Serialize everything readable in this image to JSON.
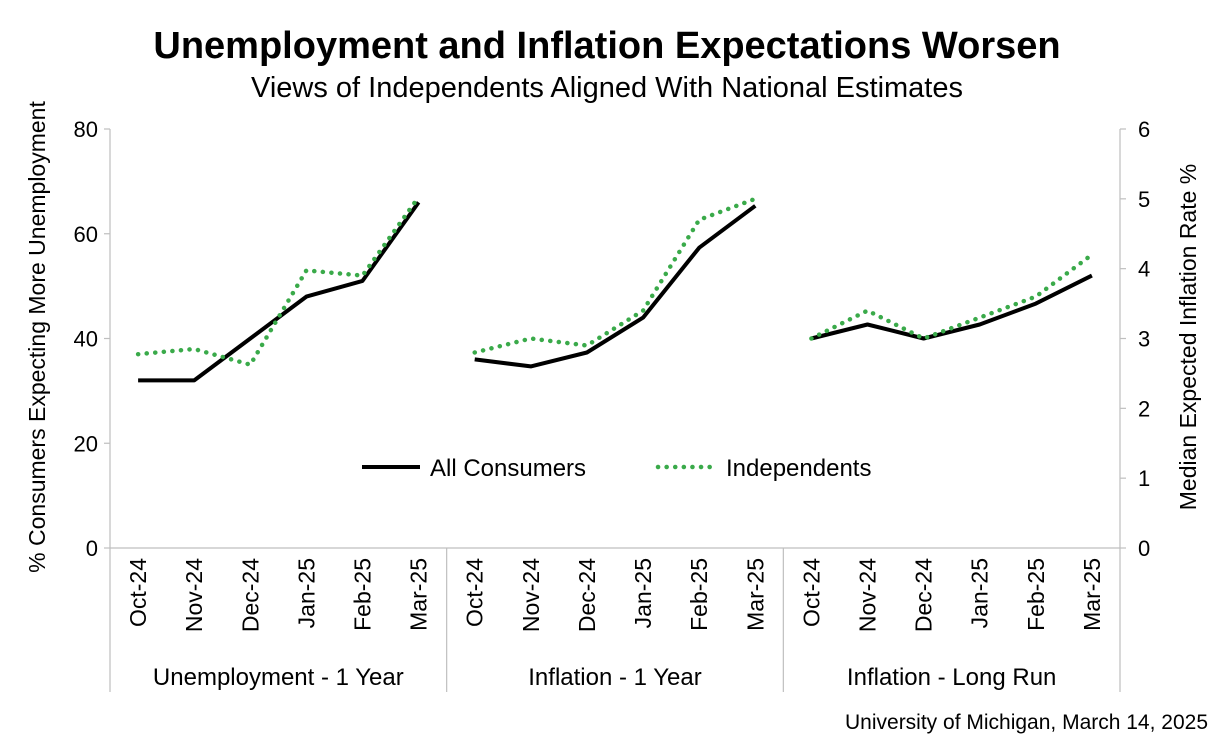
{
  "chart_data": {
    "type": "line",
    "title": "Unemployment and Inflation Expectations Worsen",
    "subtitle": "Views of Independents Aligned With National Estimates",
    "source": "University of Michigan, March 14, 2025",
    "y_left": {
      "label": "% Consumers Expecting More Unemployment",
      "ticks": [
        "80",
        "60",
        "40",
        "20",
        "0"
      ],
      "range": [
        0,
        80
      ]
    },
    "y_right": {
      "label": "Median Expected Inflation Rate %",
      "ticks": [
        "6",
        "5",
        "4",
        "3",
        "2",
        "1",
        "0"
      ],
      "range": [
        0,
        6
      ]
    },
    "categories": [
      "Oct-24",
      "Nov-24",
      "Dec-24",
      "Jan-25",
      "Feb-25",
      "Mar-25"
    ],
    "grid": false,
    "legend_position": "center",
    "groups": [
      {
        "label": "Unemployment - 1 Year",
        "axis": "left",
        "series": [
          {
            "name": "All Consumers",
            "values": [
              32,
              32,
              40,
              48,
              51,
              66
            ]
          },
          {
            "name": "Independents",
            "values": [
              37,
              38,
              35,
              53,
              52,
              67
            ]
          }
        ]
      },
      {
        "label": "Inflation - 1 Year",
        "axis": "right",
        "series": [
          {
            "name": "All Consumers",
            "values": [
              2.7,
              2.6,
              2.8,
              3.3,
              4.3,
              4.9
            ]
          },
          {
            "name": "Independents",
            "values": [
              2.8,
              3.0,
              2.9,
              3.4,
              4.7,
              5.0
            ]
          }
        ]
      },
      {
        "label": "Inflation - Long Run",
        "axis": "right",
        "series": [
          {
            "name": "All Consumers",
            "values": [
              3.0,
              3.2,
              3.0,
              3.2,
              3.5,
              3.9
            ]
          },
          {
            "name": "Independents",
            "values": [
              3.0,
              3.4,
              3.0,
              3.3,
              3.6,
              4.2
            ]
          }
        ]
      }
    ],
    "series_styles": [
      {
        "name": "All Consumers",
        "color": "#000000",
        "dash": "solid"
      },
      {
        "name": "Independents",
        "color": "#3aaa4a",
        "dash": "dotted"
      }
    ]
  }
}
